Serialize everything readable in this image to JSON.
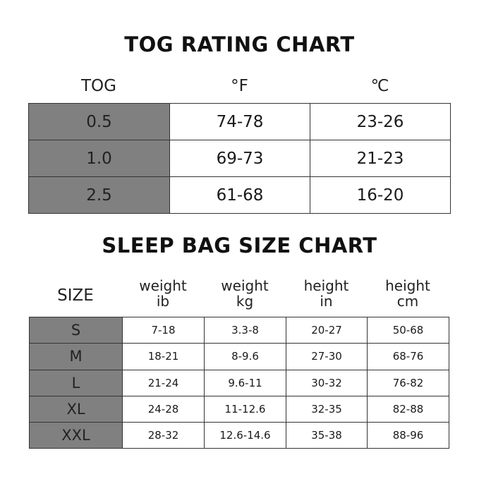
{
  "tog_chart": {
    "title": "TOG RATING CHART",
    "headers": [
      "TOG",
      "°F",
      "℃"
    ],
    "rows": [
      [
        "0.5",
        "74-78",
        "23-26"
      ],
      [
        "1.0",
        "69-73",
        "21-23"
      ],
      [
        "2.5",
        "61-68",
        "16-20"
      ]
    ]
  },
  "size_chart": {
    "title": "SLEEP BAG SIZE CHART",
    "headers": [
      {
        "line1": "SIZE",
        "line2": ""
      },
      {
        "line1": "weight",
        "line2": "ib"
      },
      {
        "line1": "weight",
        "line2": "kg"
      },
      {
        "line1": "height",
        "line2": "in"
      },
      {
        "line1": "height",
        "line2": "cm"
      }
    ],
    "rows": [
      [
        "S",
        "7-18",
        "3.3-8",
        "20-27",
        "50-68"
      ],
      [
        "M",
        "18-21",
        "8-9.6",
        "27-30",
        "68-76"
      ],
      [
        "L",
        "21-24",
        "9.6-11",
        "30-32",
        "76-82"
      ],
      [
        "XL",
        "24-28",
        "11-12.6",
        "32-35",
        "82-88"
      ],
      [
        "XXL",
        "28-32",
        "12.6-14.6",
        "35-38",
        "88-96"
      ]
    ]
  },
  "colors": {
    "key_cell": "#808080",
    "border": "#333333"
  }
}
